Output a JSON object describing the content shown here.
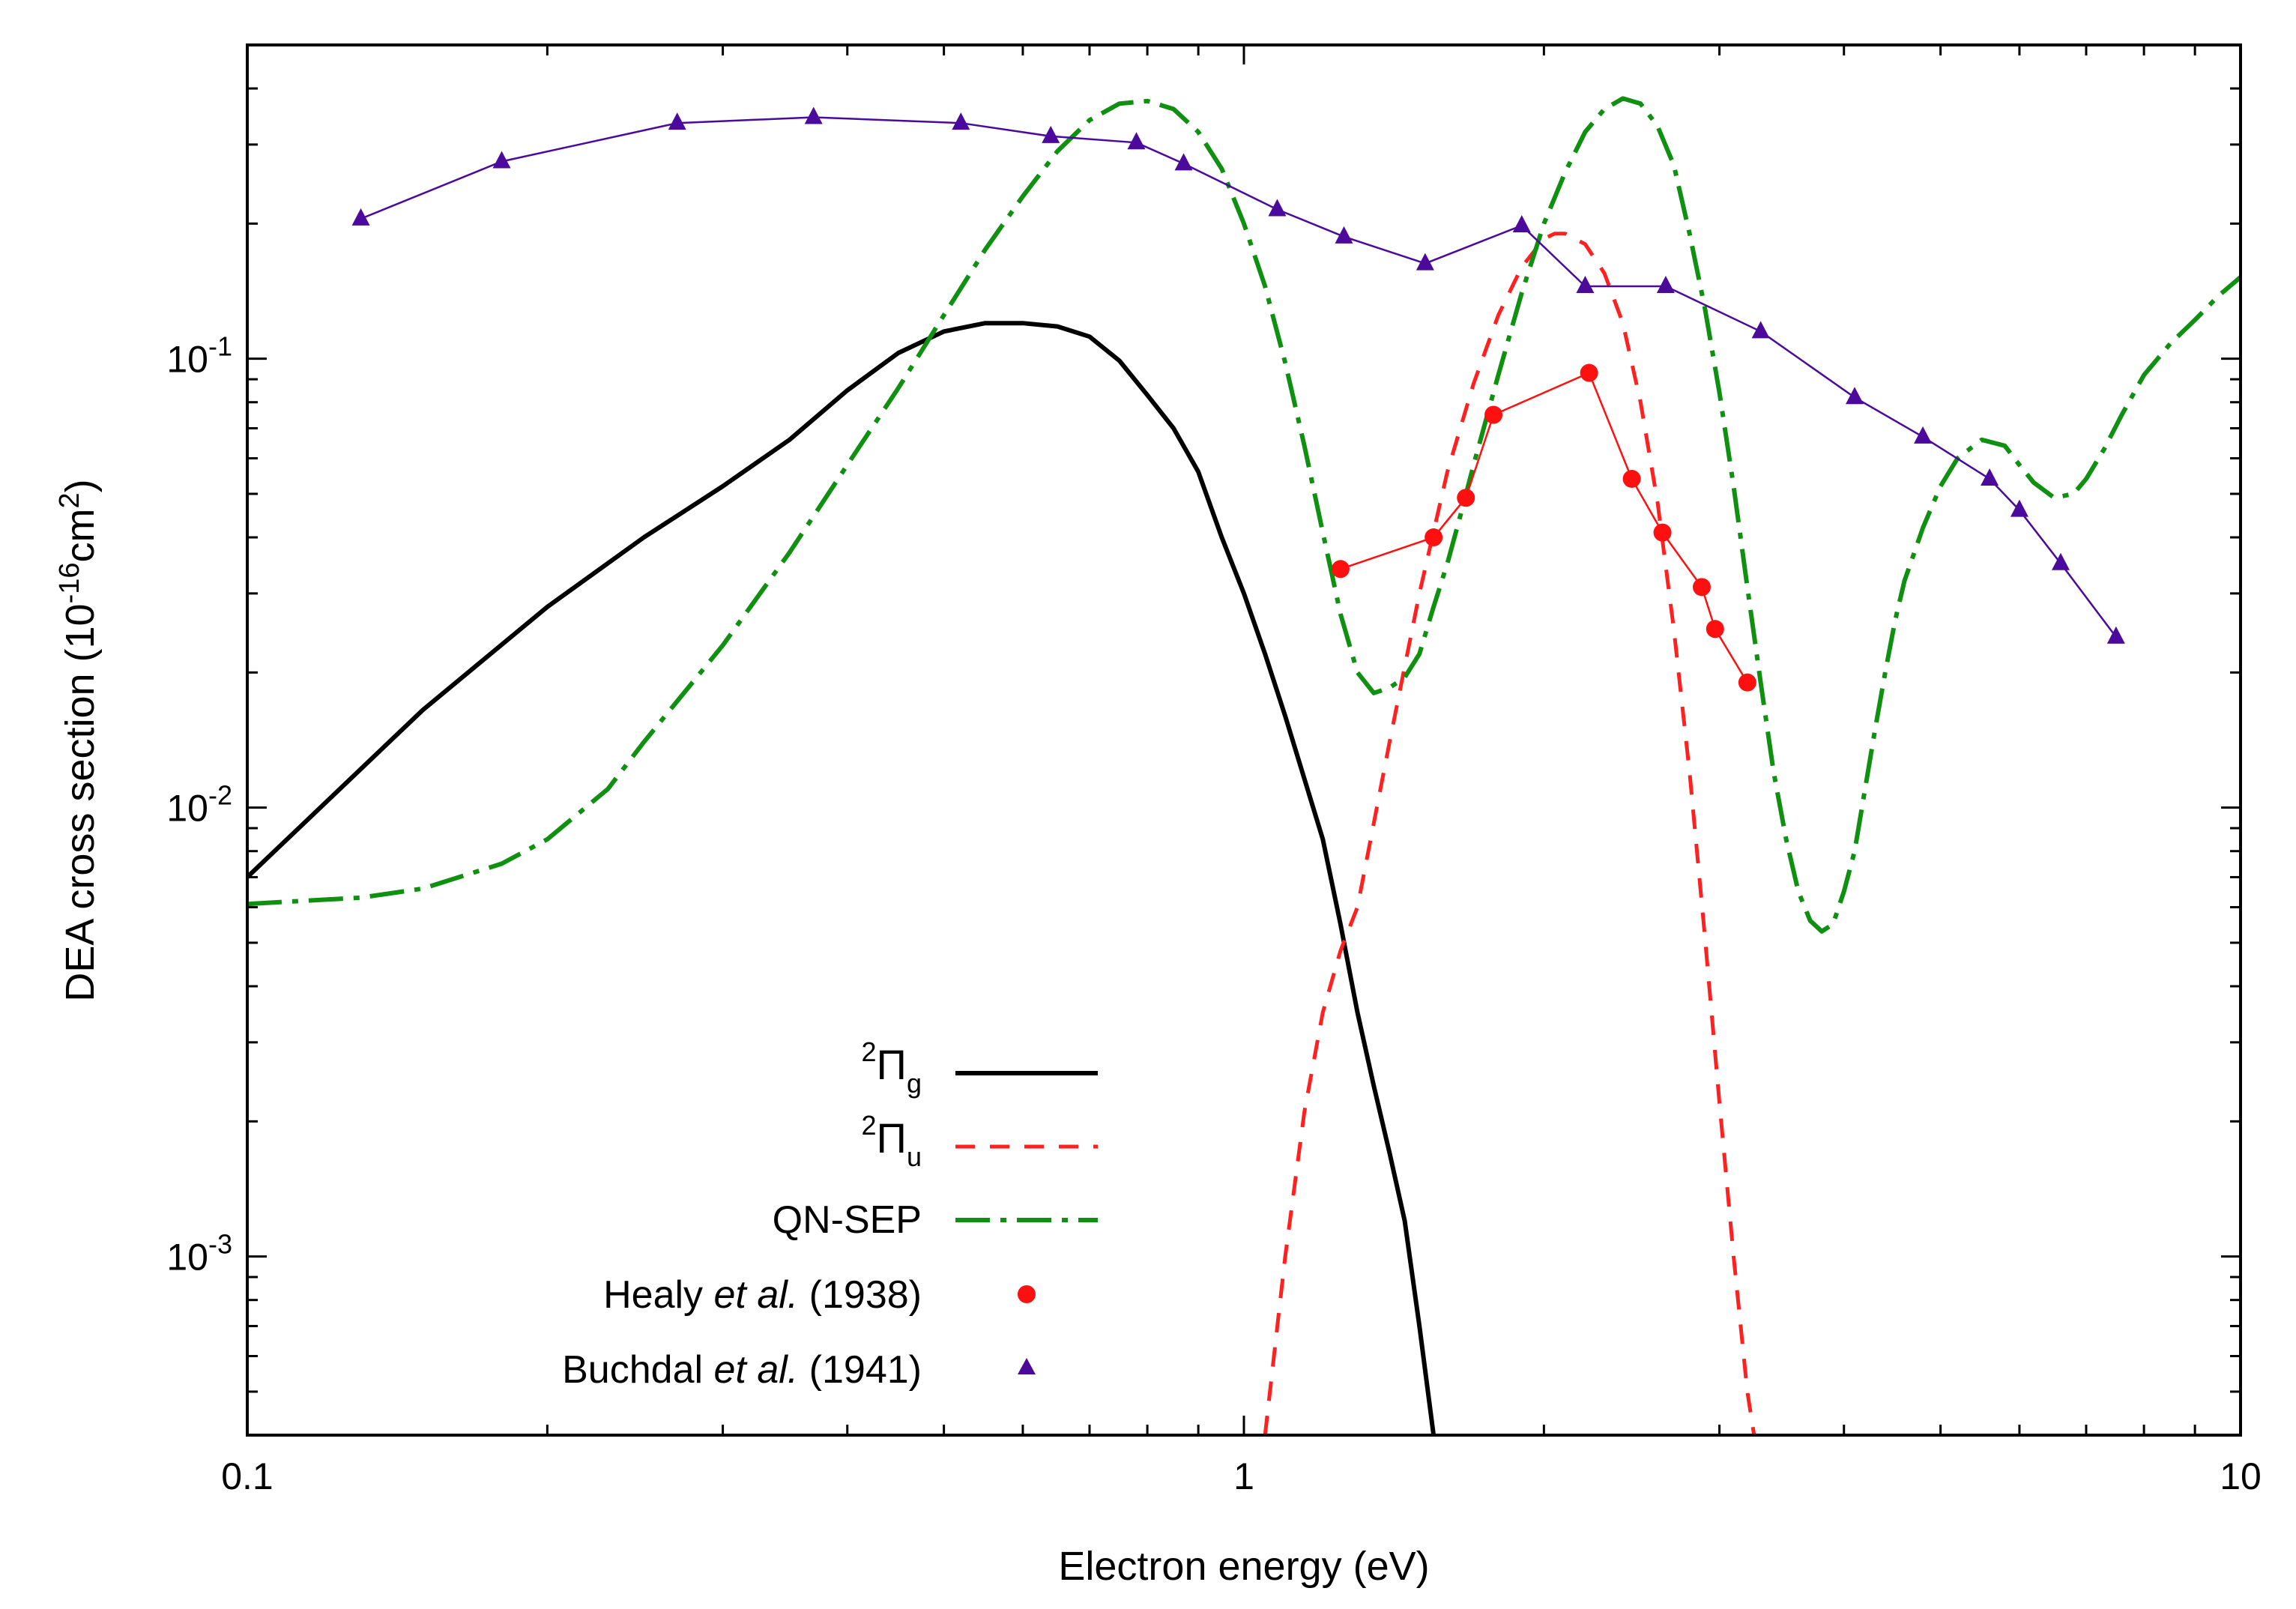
{
  "chart_data": {
    "type": "line",
    "title": "",
    "xlabel": "Electron energy (eV)",
    "ylabel": {
      "base": "DEA cross section (10",
      "exp1": "-16",
      "mid": "cm",
      "exp2": "2",
      "end": ")"
    },
    "xscale": "log",
    "yscale": "log",
    "xlim": [
      0.1,
      10
    ],
    "ylim": [
      0.0004,
      0.5
    ],
    "x_ticks": [
      {
        "value": 0.1,
        "label": "0.1"
      },
      {
        "value": 1,
        "label": "1"
      },
      {
        "value": 10,
        "label": "10"
      }
    ],
    "y_ticks": [
      {
        "value": 0.1,
        "base": "10",
        "exp": "-1"
      },
      {
        "value": 0.01,
        "base": "10",
        "exp": "-2"
      },
      {
        "value": 0.001,
        "base": "10",
        "exp": "-3"
      }
    ],
    "legend_position": "bottom-center",
    "series": [
      {
        "name": "Pi_g",
        "legend": {
          "sup": "2",
          "main": "Π",
          "sub": "g"
        },
        "color": "#000000",
        "style": "solid",
        "x": [
          0.1,
          0.15,
          0.2,
          0.25,
          0.3,
          0.35,
          0.4,
          0.45,
          0.5,
          0.55,
          0.6,
          0.65,
          0.7,
          0.75,
          0.8,
          0.85,
          0.9,
          0.95,
          1.0,
          1.05,
          1.1,
          1.2,
          1.25,
          1.3,
          1.35,
          1.4,
          1.45,
          1.5,
          1.55
        ],
        "values": [
          0.007,
          0.0165,
          0.028,
          0.04,
          0.052,
          0.066,
          0.085,
          0.103,
          0.115,
          0.12,
          0.12,
          0.118,
          0.112,
          0.099,
          0.083,
          0.07,
          0.056,
          0.04,
          0.03,
          0.022,
          0.016,
          0.0085,
          0.0055,
          0.0035,
          0.0024,
          0.0017,
          0.0012,
          0.0007,
          0.0004
        ]
      },
      {
        "name": "Pi_u",
        "legend": {
          "sup": "2",
          "main": "Π",
          "sub": "u"
        },
        "color": "#ff2020",
        "style": "dashed",
        "x": [
          1.05,
          1.1,
          1.15,
          1.2,
          1.25,
          1.3,
          1.4,
          1.5,
          1.6,
          1.7,
          1.8,
          1.9,
          2.0,
          2.05,
          2.1,
          2.2,
          2.3,
          2.4,
          2.5,
          2.6,
          2.7,
          2.8,
          2.9,
          3.0,
          3.1,
          3.2,
          3.25
        ],
        "values": [
          0.0004,
          0.001,
          0.0021,
          0.0035,
          0.0048,
          0.006,
          0.014,
          0.03,
          0.056,
          0.088,
          0.125,
          0.16,
          0.185,
          0.19,
          0.19,
          0.18,
          0.155,
          0.12,
          0.08,
          0.048,
          0.025,
          0.012,
          0.0052,
          0.0022,
          0.001,
          0.0005,
          0.0004
        ]
      },
      {
        "name": "QN-SEP",
        "legend": {
          "main": "QN-SEP"
        },
        "color": "#109010",
        "style": "dashdot",
        "x": [
          0.1,
          0.13,
          0.15,
          0.18,
          0.2,
          0.23,
          0.25,
          0.3,
          0.35,
          0.4,
          0.45,
          0.5,
          0.55,
          0.6,
          0.65,
          0.7,
          0.75,
          0.8,
          0.85,
          0.9,
          0.95,
          1.0,
          1.05,
          1.1,
          1.15,
          1.2,
          1.25,
          1.3,
          1.35,
          1.4,
          1.45,
          1.5,
          1.55,
          1.6,
          1.65,
          1.7,
          1.8,
          1.9,
          2.0,
          2.1,
          2.2,
          2.3,
          2.4,
          2.5,
          2.6,
          2.7,
          2.8,
          2.9,
          3.0,
          3.1,
          3.2,
          3.3,
          3.4,
          3.5,
          3.6,
          3.7,
          3.8,
          3.9,
          4.0,
          4.1,
          4.2,
          4.3,
          4.4,
          4.5,
          4.6,
          4.8,
          5.0,
          5.2,
          5.5,
          5.8,
          6.0,
          6.2,
          6.5,
          6.8,
          7.0,
          7.3,
          7.6,
          8.0,
          8.5,
          9.0,
          9.5,
          10.0
        ],
        "values": [
          0.0061,
          0.0063,
          0.0066,
          0.0075,
          0.0085,
          0.011,
          0.014,
          0.023,
          0.037,
          0.058,
          0.086,
          0.125,
          0.175,
          0.23,
          0.29,
          0.34,
          0.37,
          0.375,
          0.36,
          0.32,
          0.265,
          0.2,
          0.145,
          0.098,
          0.064,
          0.041,
          0.027,
          0.02,
          0.018,
          0.0185,
          0.0195,
          0.022,
          0.028,
          0.035,
          0.045,
          0.058,
          0.092,
          0.14,
          0.2,
          0.26,
          0.32,
          0.36,
          0.38,
          0.37,
          0.33,
          0.27,
          0.19,
          0.13,
          0.084,
          0.052,
          0.031,
          0.019,
          0.012,
          0.0085,
          0.0065,
          0.0056,
          0.0053,
          0.0055,
          0.0065,
          0.008,
          0.011,
          0.015,
          0.02,
          0.026,
          0.032,
          0.042,
          0.052,
          0.06,
          0.066,
          0.064,
          0.058,
          0.053,
          0.049,
          0.05,
          0.054,
          0.063,
          0.075,
          0.092,
          0.108,
          0.122,
          0.138,
          0.152
        ]
      },
      {
        "name": "Healy et al. (1938)",
        "legend": {
          "pre": "Healy ",
          "italic": "et al.",
          "post": " (1938)"
        },
        "color": "#ff1010",
        "style": "circles",
        "x": [
          1.25,
          1.55,
          1.67,
          1.78,
          2.22,
          2.45,
          2.63,
          2.88,
          2.97,
          3.2
        ],
        "values": [
          0.034,
          0.04,
          0.049,
          0.075,
          0.093,
          0.054,
          0.041,
          0.031,
          0.025,
          0.019
        ]
      },
      {
        "name": "Buchdal et al. (1941)",
        "legend": {
          "pre": "Buchdal ",
          "italic": "et al.",
          "post": " (1941)"
        },
        "color": "#4b0a9b",
        "style": "triangles",
        "x": [
          0.13,
          0.18,
          0.27,
          0.37,
          0.52,
          0.64,
          0.78,
          0.87,
          1.08,
          1.26,
          1.52,
          1.9,
          2.2,
          2.65,
          3.3,
          4.1,
          4.8,
          5.6,
          6.0,
          6.6,
          7.5
        ],
        "values": [
          0.205,
          0.275,
          0.335,
          0.345,
          0.335,
          0.313,
          0.303,
          0.272,
          0.215,
          0.187,
          0.163,
          0.198,
          0.145,
          0.145,
          0.115,
          0.082,
          0.067,
          0.054,
          0.046,
          0.035,
          0.024
        ]
      }
    ]
  }
}
